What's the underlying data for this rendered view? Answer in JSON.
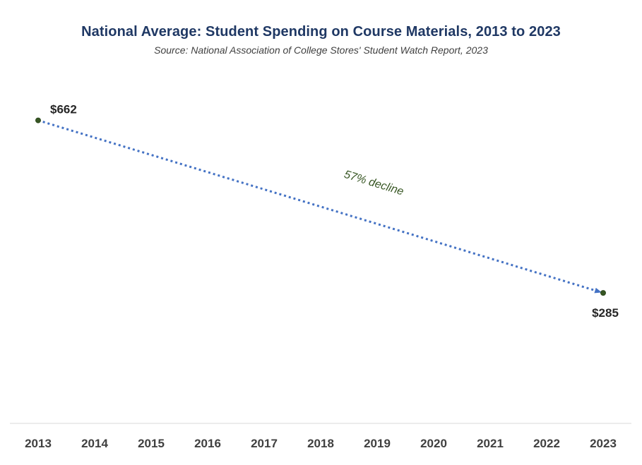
{
  "chart_data": {
    "type": "line",
    "title": "National Average: Student Spending on Course Materials, 2013 to 2023",
    "subtitle": "Source: National Association of College Stores' Student Watch Report, 2023",
    "xlabel": "",
    "ylabel": "",
    "categories": [
      "2013",
      "2014",
      "2015",
      "2016",
      "2017",
      "2018",
      "2019",
      "2020",
      "2021",
      "2022",
      "2023"
    ],
    "points": [
      {
        "x": "2013",
        "y": 662,
        "label": "$662"
      },
      {
        "x": "2023",
        "y": 285,
        "label": "$285"
      }
    ],
    "annotation": "57% decline",
    "ylim": [
      0,
      760
    ],
    "grid": false,
    "legend": "none",
    "colors": {
      "line": "#4472c4",
      "marker": "#375623",
      "title": "#1f3864",
      "annotation": "#375623"
    }
  }
}
